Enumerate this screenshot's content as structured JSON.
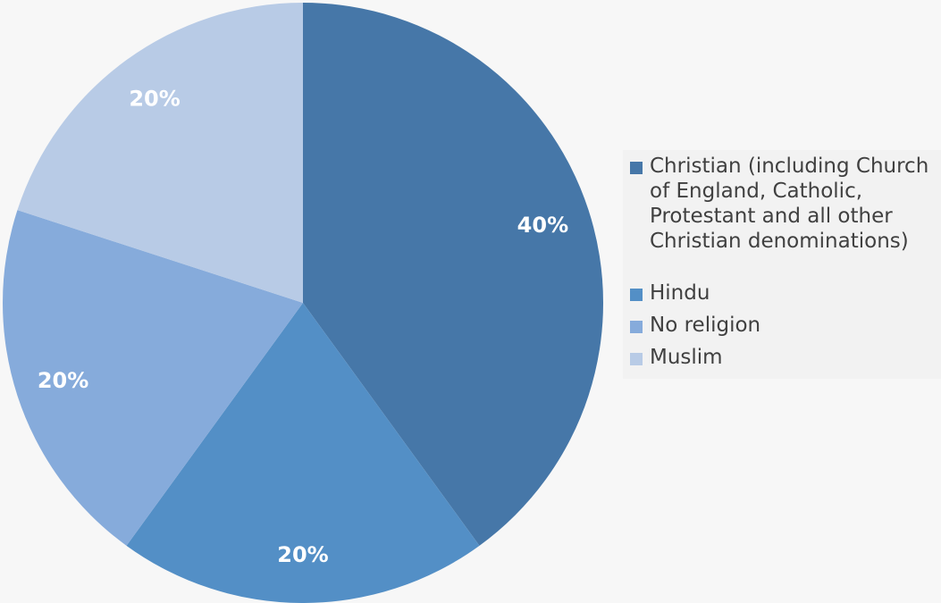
{
  "chart_data": {
    "type": "pie",
    "title": "",
    "categories": [
      "Christian (including Church of England, Catholic, Protestant and all other Christian denominations)",
      "Hindu",
      "No religion",
      "Muslim"
    ],
    "values": [
      40,
      20,
      20,
      20
    ],
    "data_labels": [
      "40%",
      "20%",
      "20%",
      "20%"
    ],
    "colors": [
      "#4677a8",
      "#538fc6",
      "#86abdb",
      "#b8cbe6"
    ],
    "legend_position": "right",
    "label_color": "#ffffff"
  },
  "legend": {
    "items": [
      {
        "label": "Christian (including Church of England, Catholic, Protestant and all other Christian denominations)",
        "color": "#4677a8"
      },
      {
        "label": "Hindu",
        "color": "#538fc6"
      },
      {
        "label": "No religion",
        "color": "#86abdb"
      },
      {
        "label": "Muslim",
        "color": "#b8cbe6"
      }
    ]
  }
}
